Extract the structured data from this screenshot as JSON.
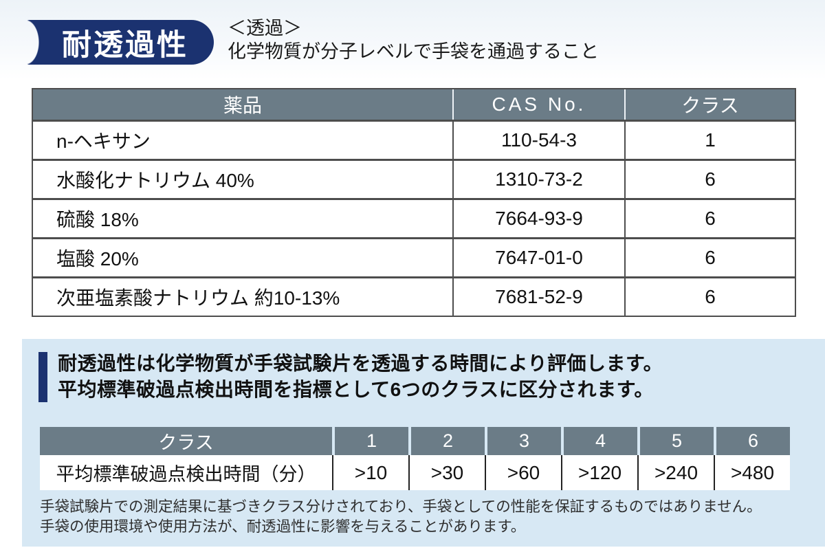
{
  "header": {
    "badge": "耐透過性",
    "subtitle_line1": "＜透過＞",
    "subtitle_line2": "化学物質が分子レベルで手袋を通過すること"
  },
  "colors": {
    "badge_navy": "#1b3270",
    "table_header_slate": "#6b7c87",
    "panel_light_blue": "#d7e8f4"
  },
  "permeation_table": {
    "columns": [
      "薬品",
      "CAS No.",
      "クラス"
    ],
    "rows": [
      {
        "chemical": "n-ヘキサン",
        "cas": "110-54-3",
        "class": "1"
      },
      {
        "chemical": "水酸化ナトリウム 40%",
        "cas": "1310-73-2",
        "class": "6"
      },
      {
        "chemical": "硫酸 18%",
        "cas": "7664-93-9",
        "class": "6"
      },
      {
        "chemical": "塩酸 20%",
        "cas": "7647-01-0",
        "class": "6"
      },
      {
        "chemical": "次亜塩素酸ナトリウム 約10-13%",
        "cas": "7681-52-9",
        "class": "6"
      }
    ]
  },
  "info_panel": {
    "description_line1": "耐透過性は化学物質が手袋試験片を透過する時間により評価します。",
    "description_line2": "平均標準破過点検出時間を指標として6つのクラスに区分されます。",
    "class_table": {
      "header_label": "クラス",
      "classes": [
        "1",
        "2",
        "3",
        "4",
        "5",
        "6"
      ],
      "row_label": "平均標準破過点検出時間（分）",
      "values": [
        ">10",
        ">30",
        ">60",
        ">120",
        ">240",
        ">480"
      ]
    },
    "notes": [
      "手袋試験片での測定結果に基づきクラス分けされており、手袋としての性能を保証するものではありません。",
      "手袋の使用環境や使用方法が、耐透過性に影響を与えることがあります。"
    ]
  }
}
